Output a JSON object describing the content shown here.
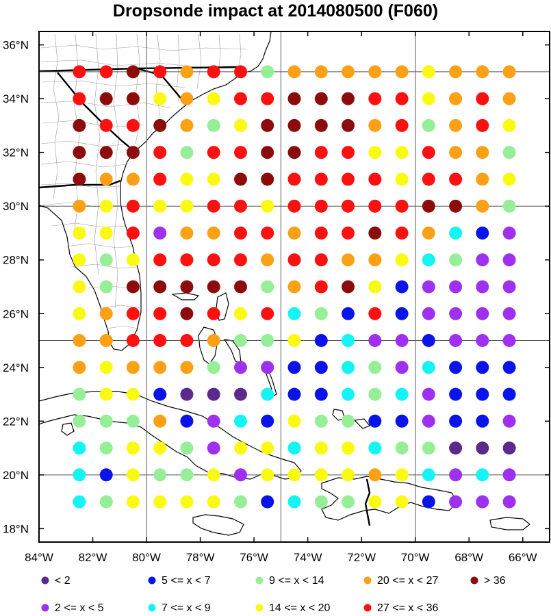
{
  "title": "Dropsonde impact at 2014080500 (F060)",
  "map": {
    "lon_range": [
      -84,
      -65
    ],
    "lat_range": [
      17.5,
      36.5
    ],
    "graticule_lons": [
      -80,
      -75,
      -70
    ],
    "graticule_lats": [
      20,
      25,
      30,
      35
    ],
    "x_ticks": [
      {
        "lon": -84,
        "label": "84°W"
      },
      {
        "lon": -82,
        "label": "82°W"
      },
      {
        "lon": -80,
        "label": "80°W"
      },
      {
        "lon": -78,
        "label": "78°W"
      },
      {
        "lon": -76,
        "label": "76°W"
      },
      {
        "lon": -74,
        "label": "74°W"
      },
      {
        "lon": -72,
        "label": "72°W"
      },
      {
        "lon": -70,
        "label": "70°W"
      },
      {
        "lon": -68,
        "label": "68°W"
      },
      {
        "lon": -66,
        "label": "66°W"
      }
    ],
    "y_ticks": [
      {
        "lat": 18,
        "label": "18°N"
      },
      {
        "lat": 20,
        "label": "20°N"
      },
      {
        "lat": 22,
        "label": "22°N"
      },
      {
        "lat": 24,
        "label": "24°N"
      },
      {
        "lat": 26,
        "label": "26°N"
      },
      {
        "lat": 28,
        "label": "28°N"
      },
      {
        "lat": 30,
        "label": "30°N"
      },
      {
        "lat": 32,
        "label": "32°N"
      },
      {
        "lat": 34,
        "label": "34°N"
      },
      {
        "lat": 36,
        "label": "36°N"
      }
    ]
  },
  "categories": [
    {
      "key": "a",
      "label": "<  2",
      "color": "#5b2a8c"
    },
    {
      "key": "b",
      "label": "2 <= x <  5",
      "color": "#a030f0"
    },
    {
      "key": "c",
      "label": "5 <= x <  7",
      "color": "#0a14e8"
    },
    {
      "key": "d",
      "label": "7 <= x <  9",
      "color": "#14f4f4"
    },
    {
      "key": "e",
      "label": "9 <= x < 14",
      "color": "#96ee96"
    },
    {
      "key": "f",
      "label": "14 <= x < 20",
      "color": "#fafa10"
    },
    {
      "key": "g",
      "label": "20 <= x < 27",
      "color": "#fca015"
    },
    {
      "key": "h",
      "label": "27 <= x < 36",
      "color": "#fc1010"
    },
    {
      "key": "i",
      "label": "> 36",
      "color": "#8c0c0c"
    }
  ],
  "chart_data": {
    "type": "scatter",
    "title": "Dropsonde impact at 2014080500 (F060)",
    "lons": [
      -82.5,
      -81.5,
      -80.5,
      -79.5,
      -78.5,
      -77.5,
      -76.5,
      -75.5,
      -74.5,
      -73.5,
      -72.5,
      -71.5,
      -70.5,
      -69.5,
      -68.5,
      -67.5,
      -66.5
    ],
    "lats": [
      35,
      34,
      33,
      32,
      31,
      30,
      29,
      28,
      27,
      26,
      25,
      24,
      23,
      22,
      21,
      20,
      19
    ],
    "grid": [
      "hhihghhegggggfggg",
      "hiifgfhhiiihhfghg",
      "ihhigefiiiigheghf",
      "iiihehhiihhffhgge",
      "igghffiihhhhfhhgf",
      "gfhffhhfhhhhhiige",
      "ffhbgghhghhihgdcb",
      "fefhhhhghhggfdebb",
      "feiiiiieghifcbbbb",
      "fghhihfhdechcbbbb",
      "gghhhgeefcdbbcbbb",
      "gfgggebbccdebdccc",
      "effcaaadccdedbccc",
      "eeegcbdcfeeccbccb",
      "deffebffdffdeeaaa",
      "dcfeefbffffgfdbdb",
      "deffffecdeeffcbbb"
    ]
  }
}
